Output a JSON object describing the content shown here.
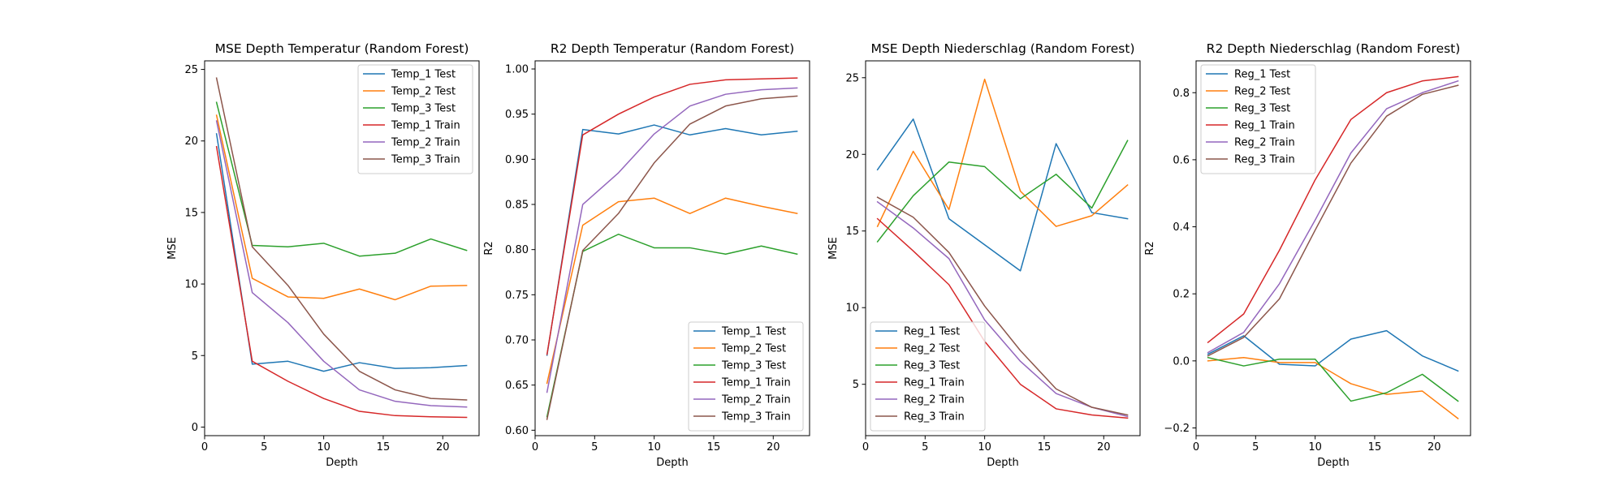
{
  "colors": {
    "c0": "#1f77b4",
    "c1": "#ff7f0e",
    "c2": "#2ca02c",
    "c3": "#d62728",
    "c4": "#9467bd",
    "c5": "#8c564b"
  },
  "chart_data": [
    {
      "type": "line",
      "title": "MSE Depth Temperatur (Random Forest)",
      "xlabel": "Depth",
      "ylabel": "MSE",
      "xlim": [
        0,
        23.05
      ],
      "ylim": [
        -0.6,
        25.6
      ],
      "xticks": [
        0,
        5,
        10,
        15,
        20
      ],
      "yticks": [
        0,
        5,
        10,
        15,
        20,
        25
      ],
      "legend_position": "upper right",
      "x": [
        1,
        4,
        7,
        10,
        13,
        16,
        19,
        22
      ],
      "series": [
        {
          "name": "Temp_1 Test",
          "values": [
            20.5,
            4.4,
            4.6,
            3.9,
            4.5,
            4.1,
            4.15,
            4.3
          ]
        },
        {
          "name": "Temp_2 Test",
          "values": [
            21.8,
            10.4,
            9.1,
            9.0,
            9.65,
            8.9,
            9.85,
            9.9
          ]
        },
        {
          "name": "Temp_3 Test",
          "values": [
            22.7,
            12.7,
            12.6,
            12.85,
            11.95,
            12.15,
            13.15,
            12.35
          ]
        },
        {
          "name": "Temp_1 Train",
          "values": [
            19.6,
            4.6,
            3.2,
            2.0,
            1.1,
            0.8,
            0.72,
            0.68
          ]
        },
        {
          "name": "Temp_2 Train",
          "values": [
            21.4,
            9.4,
            7.3,
            4.6,
            2.6,
            1.8,
            1.5,
            1.4
          ]
        },
        {
          "name": "Temp_3 Train",
          "values": [
            24.4,
            12.6,
            9.9,
            6.5,
            3.9,
            2.6,
            2.0,
            1.9
          ]
        }
      ]
    },
    {
      "type": "line",
      "title": "R2 Depth Temperatur (Random Forest)",
      "xlabel": "Depth",
      "ylabel": "R2",
      "xlim": [
        0,
        23.05
      ],
      "ylim": [
        0.594,
        1.009
      ],
      "xticks": [
        0,
        5,
        10,
        15,
        20
      ],
      "yticks": [
        0.6,
        0.65,
        0.7,
        0.75,
        0.8,
        0.85,
        0.9,
        0.95,
        1.0
      ],
      "ytick_labels": [
        "0.60",
        "0.65",
        "0.70",
        "0.75",
        "0.80",
        "0.85",
        "0.90",
        "0.95",
        "1.00"
      ],
      "legend_position": "lower right",
      "x": [
        1,
        4,
        7,
        10,
        13,
        16,
        19,
        22
      ],
      "series": [
        {
          "name": "Temp_1 Test",
          "values": [
            0.683,
            0.933,
            0.928,
            0.938,
            0.927,
            0.934,
            0.927,
            0.931
          ]
        },
        {
          "name": "Temp_2 Test",
          "values": [
            0.652,
            0.827,
            0.853,
            0.857,
            0.84,
            0.857,
            0.848,
            0.84
          ]
        },
        {
          "name": "Temp_3 Test",
          "values": [
            0.615,
            0.798,
            0.817,
            0.802,
            0.802,
            0.795,
            0.804,
            0.795
          ]
        },
        {
          "name": "Temp_1 Train",
          "values": [
            0.684,
            0.927,
            0.95,
            0.969,
            0.983,
            0.988,
            0.989,
            0.99
          ]
        },
        {
          "name": "Temp_2 Train",
          "values": [
            0.642,
            0.85,
            0.885,
            0.928,
            0.959,
            0.972,
            0.977,
            0.979
          ]
        },
        {
          "name": "Temp_3 Train",
          "values": [
            0.612,
            0.799,
            0.84,
            0.896,
            0.939,
            0.959,
            0.967,
            0.97
          ]
        }
      ]
    },
    {
      "type": "line",
      "title": "MSE Depth Niederschlag (Random Forest)",
      "xlabel": "Depth",
      "ylabel": "MSE",
      "xlim": [
        0,
        23.05
      ],
      "ylim": [
        1.65,
        26.1
      ],
      "xticks": [
        0,
        5,
        10,
        15,
        20
      ],
      "yticks": [
        5,
        10,
        15,
        20,
        25
      ],
      "legend_position": "lower left",
      "x": [
        1,
        4,
        7,
        10,
        13,
        16,
        19,
        22
      ],
      "series": [
        {
          "name": "Reg_1 Test",
          "values": [
            19.0,
            22.3,
            15.8,
            14.1,
            12.4,
            20.7,
            16.2,
            15.8
          ]
        },
        {
          "name": "Reg_2 Test",
          "values": [
            15.3,
            20.2,
            16.4,
            24.9,
            17.6,
            15.3,
            16.0,
            18.0
          ]
        },
        {
          "name": "Reg_3 Test",
          "values": [
            14.3,
            17.3,
            19.5,
            19.2,
            17.1,
            18.7,
            16.5,
            20.9
          ]
        },
        {
          "name": "Reg_1 Train",
          "values": [
            15.8,
            13.7,
            11.5,
            7.8,
            5.0,
            3.4,
            3.0,
            2.8
          ]
        },
        {
          "name": "Reg_2 Train",
          "values": [
            16.9,
            15.2,
            13.2,
            9.2,
            6.5,
            4.4,
            3.5,
            2.9
          ]
        },
        {
          "name": "Reg_3 Train",
          "values": [
            17.2,
            15.9,
            13.6,
            10.1,
            7.2,
            4.7,
            3.5,
            3.0
          ]
        }
      ]
    },
    {
      "type": "line",
      "title": "R2 Depth Niederschlag (Random Forest)",
      "xlabel": "Depth",
      "ylabel": "R2",
      "xlim": [
        0,
        23.05
      ],
      "ylim": [
        -0.223,
        0.895
      ],
      "xticks": [
        0,
        5,
        10,
        15,
        20
      ],
      "yticks": [
        -0.2,
        0.0,
        0.2,
        0.4,
        0.6,
        0.8
      ],
      "ytick_labels": [
        "−0.2",
        "0.0",
        "0.2",
        "0.4",
        "0.6",
        "0.8"
      ],
      "legend_position": "upper left",
      "x": [
        1,
        4,
        7,
        10,
        13,
        16,
        19,
        22
      ],
      "series": [
        {
          "name": "Reg_1 Test",
          "values": [
            0.02,
            0.075,
            -0.01,
            -0.015,
            0.065,
            0.09,
            0.015,
            -0.03
          ]
        },
        {
          "name": "Reg_2 Test",
          "values": [
            0.0,
            0.01,
            -0.005,
            -0.005,
            -0.068,
            -0.1,
            -0.09,
            -0.172
          ]
        },
        {
          "name": "Reg_3 Test",
          "values": [
            0.01,
            -0.015,
            0.005,
            0.005,
            -0.12,
            -0.095,
            -0.04,
            -0.12
          ]
        },
        {
          "name": "Reg_1 Train",
          "values": [
            0.055,
            0.14,
            0.33,
            0.54,
            0.72,
            0.8,
            0.835,
            0.848
          ]
        },
        {
          "name": "Reg_2 Train",
          "values": [
            0.025,
            0.085,
            0.23,
            0.42,
            0.62,
            0.752,
            0.8,
            0.835
          ]
        },
        {
          "name": "Reg_3 Train",
          "values": [
            0.015,
            0.07,
            0.185,
            0.39,
            0.59,
            0.73,
            0.795,
            0.822
          ]
        }
      ]
    }
  ]
}
